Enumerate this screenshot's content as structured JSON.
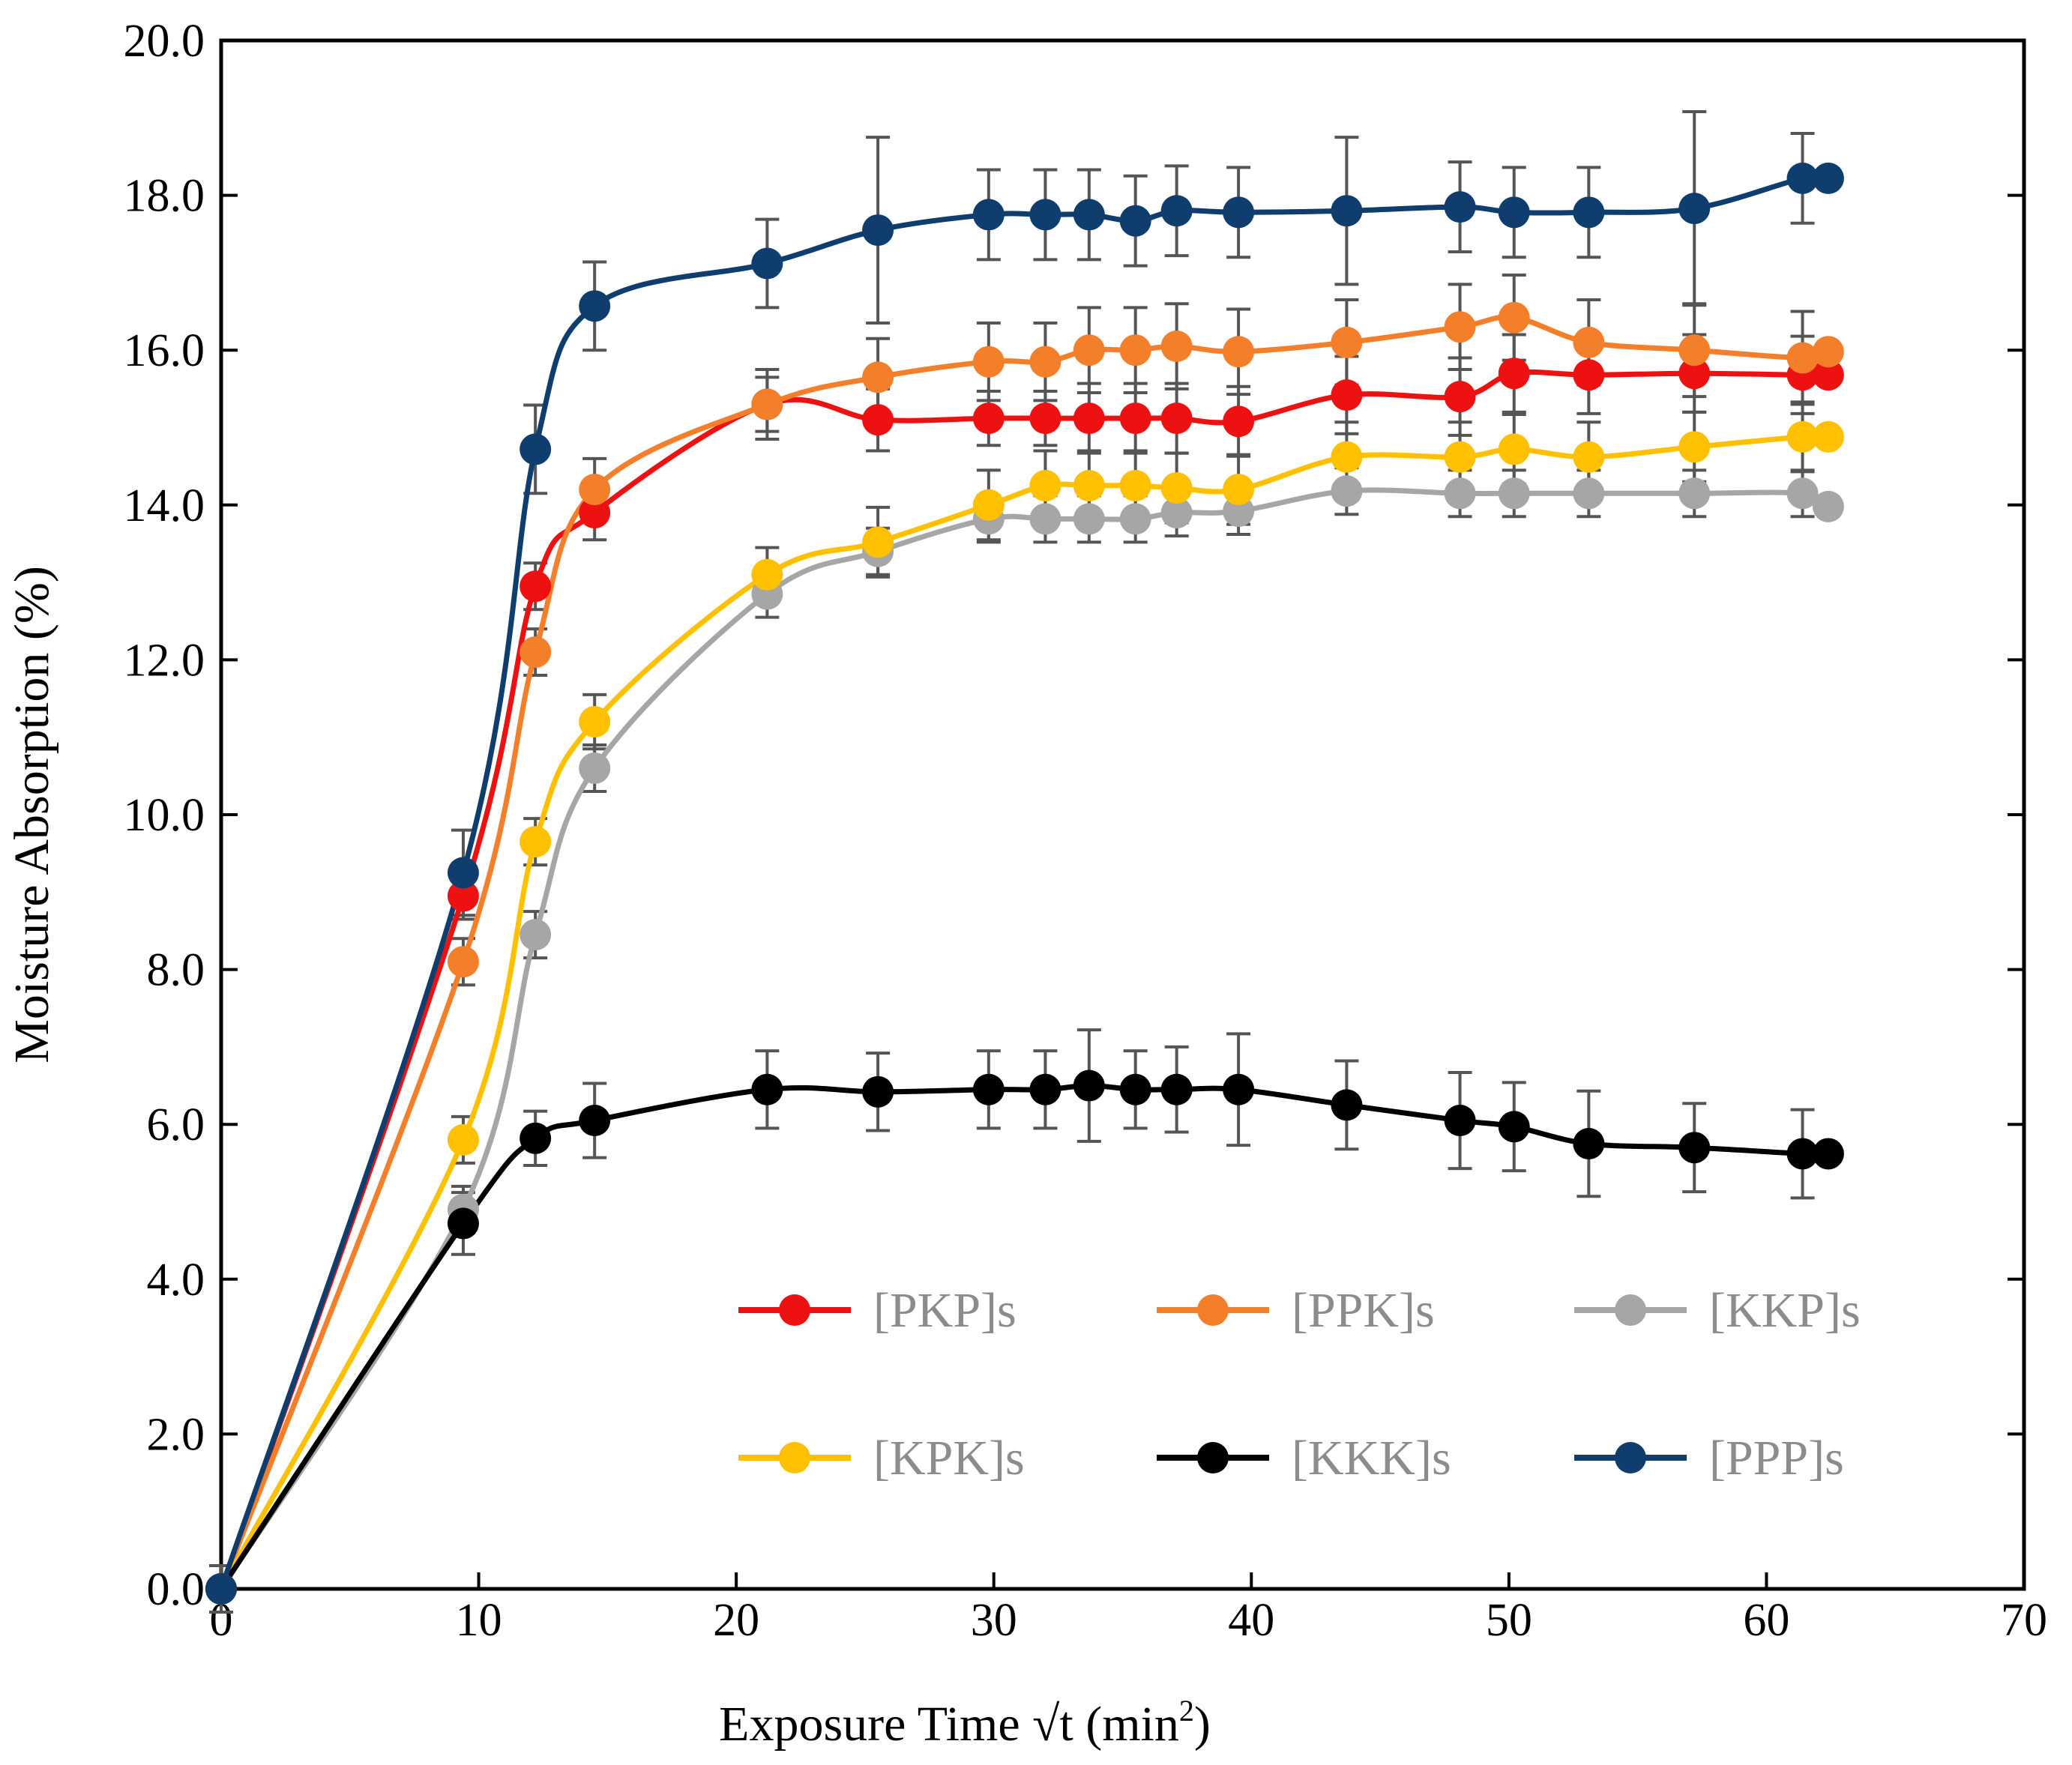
{
  "chart_data": {
    "type": "line",
    "title": "",
    "xlabel": "Exposure Time √t (min",
    "xlabel_superscript": "2",
    "xlabel_suffix": ")",
    "ylabel": "Moisture Absorption (%)",
    "xlim": [
      0,
      70
    ],
    "ylim": [
      0,
      20
    ],
    "x_ticks": [
      0,
      10,
      20,
      30,
      40,
      50,
      60,
      70
    ],
    "x_tick_labels": [
      "0",
      "10",
      "20",
      "30",
      "40",
      "50",
      "60",
      "70"
    ],
    "y_ticks": [
      0,
      2,
      4,
      6,
      8,
      10,
      12,
      14,
      16,
      18,
      20
    ],
    "y_tick_labels": [
      "0.0",
      "2.0",
      "4.0",
      "6.0",
      "8.0",
      "10.0",
      "12.0",
      "14.0",
      "16.0",
      "18.0",
      "20.0"
    ],
    "grid": false,
    "legend": "bottom-right, inside plot, 3 columns",
    "x": [
      0,
      9.4,
      12.2,
      14.5,
      21.2,
      25.5,
      29.8,
      32.0,
      33.7,
      35.5,
      37.1,
      39.5,
      43.7,
      48.1,
      50.2,
      53.1,
      57.2,
      61.4,
      62.4
    ],
    "series": [
      {
        "name": "[PKP]s",
        "color": "#ee1111",
        "values": [
          0,
          8.95,
          12.95,
          13.9,
          15.3,
          15.1,
          15.12,
          15.12,
          15.12,
          15.12,
          15.12,
          15.08,
          15.42,
          15.4,
          15.7,
          15.68,
          15.7,
          15.68,
          15.68
        ],
        "errors": [
          0.3,
          0.3,
          0.3,
          0.35,
          0.35,
          0.4,
          0.35,
          0.35,
          0.45,
          0.45,
          0.45,
          0.45,
          0.5,
          0.5,
          0.5,
          0.5,
          0.5,
          0.5,
          0
        ]
      },
      {
        "name": "[PPK]s",
        "color": "#f47f2a",
        "values": [
          0,
          8.1,
          12.1,
          14.2,
          15.3,
          15.65,
          15.85,
          15.85,
          16.0,
          16.0,
          16.05,
          15.98,
          16.1,
          16.3,
          16.42,
          16.1,
          16.0,
          15.9,
          15.98
        ],
        "errors": [
          0.3,
          0.3,
          0.3,
          0.4,
          0.45,
          0.5,
          0.5,
          0.5,
          0.55,
          0.55,
          0.55,
          0.55,
          0.55,
          0.55,
          0.55,
          0.55,
          0.6,
          0.6,
          0
        ]
      },
      {
        "name": "[KKP]s",
        "color": "#a6a6a6",
        "values": [
          0,
          4.9,
          8.45,
          10.6,
          12.85,
          13.4,
          13.82,
          13.82,
          13.82,
          13.82,
          13.9,
          13.92,
          14.18,
          14.15,
          14.15,
          14.15,
          14.15,
          14.15,
          13.98
        ],
        "errors": [
          0.3,
          0.3,
          0.3,
          0.3,
          0.3,
          0.3,
          0.3,
          0.3,
          0.3,
          0.3,
          0.3,
          0.3,
          0.3,
          0.3,
          0.3,
          0.3,
          0.3,
          0.3,
          0
        ]
      },
      {
        "name": "[KPK]s",
        "color": "#ffc000",
        "values": [
          0,
          5.8,
          9.65,
          11.2,
          13.1,
          13.52,
          14.0,
          14.25,
          14.25,
          14.25,
          14.22,
          14.2,
          14.62,
          14.62,
          14.72,
          14.62,
          14.75,
          14.88,
          14.88
        ],
        "errors": [
          0.3,
          0.3,
          0.3,
          0.35,
          0.35,
          0.45,
          0.45,
          0.45,
          0.45,
          0.45,
          0.45,
          0.45,
          0.45,
          0.45,
          0.45,
          0.45,
          0.45,
          0.45,
          0
        ]
      },
      {
        "name": "[KKK]s",
        "color": "#000000",
        "values": [
          0,
          4.72,
          5.82,
          6.05,
          6.45,
          6.42,
          6.45,
          6.45,
          6.5,
          6.45,
          6.45,
          6.45,
          6.25,
          6.05,
          5.97,
          5.75,
          5.7,
          5.62,
          5.62
        ],
        "errors": [
          0.3,
          0.4,
          0.35,
          0.48,
          0.5,
          0.5,
          0.5,
          0.5,
          0.72,
          0.5,
          0.55,
          0.72,
          0.57,
          0.62,
          0.57,
          0.68,
          0.57,
          0.57,
          0
        ]
      },
      {
        "name": "[PPP]s",
        "color": "#0e3d6e",
        "values": [
          0,
          9.25,
          14.72,
          16.57,
          17.12,
          17.55,
          17.75,
          17.75,
          17.75,
          17.67,
          17.8,
          17.78,
          17.8,
          17.85,
          17.78,
          17.78,
          17.83,
          18.22,
          18.22
        ],
        "errors": [
          0.3,
          0.55,
          0.57,
          0.57,
          0.57,
          1.2,
          0.58,
          0.58,
          0.58,
          0.58,
          0.58,
          0.58,
          0.95,
          0.58,
          0.58,
          0.58,
          1.25,
          0.58,
          0
        ]
      }
    ]
  }
}
